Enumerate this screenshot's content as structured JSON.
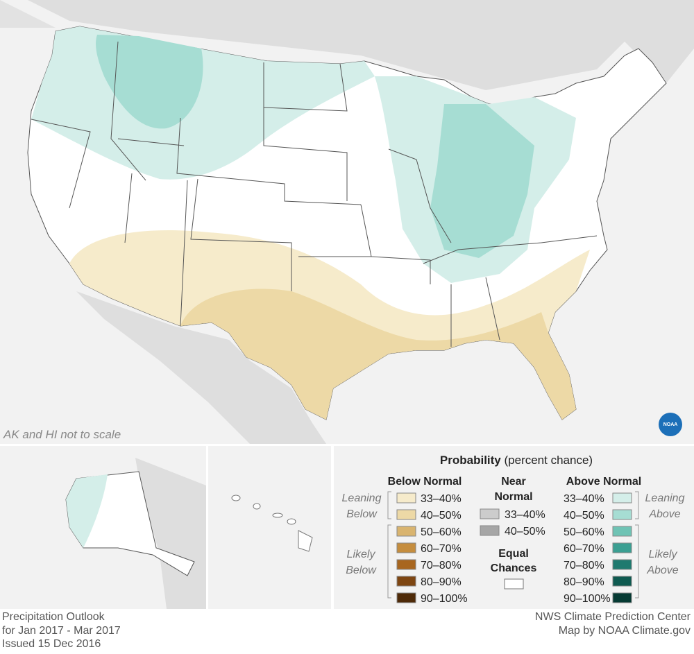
{
  "map": {
    "note": "AK and HI not to scale",
    "logo": "NOAA"
  },
  "legend": {
    "title": "Probability",
    "title_suffix": "(percent chance)",
    "below": {
      "heading": "Below Normal",
      "leaning": [
        "Leaning",
        "Below"
      ],
      "likely": [
        "Likely",
        "Below"
      ],
      "items": [
        {
          "label": "33–40%",
          "color": "#f6ebcb"
        },
        {
          "label": "40–50%",
          "color": "#edd9a6"
        },
        {
          "label": "50–60%",
          "color": "#d9b46f"
        },
        {
          "label": "60–70%",
          "color": "#c58d3e"
        },
        {
          "label": "70–80%",
          "color": "#a8661f"
        },
        {
          "label": "80–90%",
          "color": "#7e4612"
        },
        {
          "label": "90–100%",
          "color": "#4e2a08"
        }
      ]
    },
    "near": {
      "heading": [
        "Near",
        "Normal"
      ],
      "items": [
        {
          "label": "33–40%",
          "color": "#cccccc"
        },
        {
          "label": "40–50%",
          "color": "#a6a6a6"
        }
      ]
    },
    "equal": [
      "Equal",
      "Chances"
    ],
    "above": {
      "heading": "Above Normal",
      "leaning": [
        "Leaning",
        "Above"
      ],
      "likely": [
        "Likely",
        "Above"
      ],
      "items": [
        {
          "label": "33–40%",
          "color": "#d4eee9"
        },
        {
          "label": "40–50%",
          "color": "#a6ddd3"
        },
        {
          "label": "50–60%",
          "color": "#6fc3b4"
        },
        {
          "label": "60–70%",
          "color": "#3b9f92"
        },
        {
          "label": "70–80%",
          "color": "#1f7a6f"
        },
        {
          "label": "80–90%",
          "color": "#0f5a50"
        },
        {
          "label": "90–100%",
          "color": "#063a33"
        }
      ]
    }
  },
  "footer": {
    "left": [
      "Precipitation Outlook",
      "for Jan 2017 - Mar 2017",
      "Issued 15 Dec 2016"
    ],
    "right": [
      "NWS Climate Prediction Center",
      "Map by NOAA Climate.gov"
    ]
  }
}
